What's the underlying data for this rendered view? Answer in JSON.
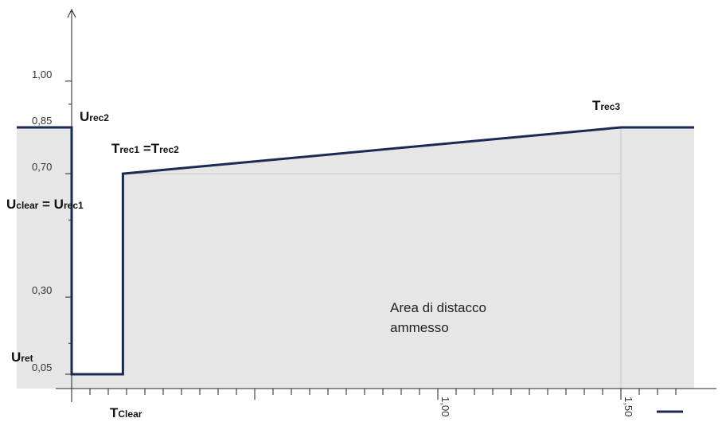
{
  "chart_data": {
    "type": "area",
    "title": "",
    "xlabel": "",
    "ylabel": "",
    "xlim": [
      -0.15,
      1.7
    ],
    "ylim": [
      0.0,
      1.2
    ],
    "y_ticks": [
      {
        "value": 0.05,
        "label": "0,05"
      },
      {
        "value": 0.3,
        "label": "0,30"
      },
      {
        "value": 0.7,
        "label": "0,70"
      },
      {
        "value": 0.85,
        "label": "0,85"
      },
      {
        "value": 1.0,
        "label": "1,00"
      }
    ],
    "x_ticks": [
      {
        "value": 1.0,
        "label": "1,00"
      },
      {
        "value": 1.5,
        "label": "1,50"
      }
    ],
    "x_minor_tick_step": 0.05,
    "series": [
      {
        "values_desc": "",
        "x": [
          -0.15,
          0.0,
          0.0,
          0.14,
          0.14,
          1.5,
          1.7
        ],
        "y": [
          0.85,
          0.85,
          0.05,
          0.05,
          0.7,
          0.85,
          0.85
        ],
        "color": "#1b2a55"
      }
    ],
    "fill_color": "#e6e6e6",
    "guide_lines": [
      {
        "y": 0.7,
        "x_from": 0.14,
        "x_to": 1.5
      },
      {
        "x": 1.5,
        "y_from": 0.0,
        "y_to": 0.85
      }
    ],
    "annotations": {
      "urec2": {
        "main": "U",
        "sub": "rec2"
      },
      "trec1_trec2": {
        "main1": "T",
        "sub1": "rec1",
        "eq": " =T",
        "sub2": "rec2"
      },
      "uclear_urec1": {
        "main1": "U",
        "sub1": "clear",
        "eq": " = U",
        "sub2": "rec1"
      },
      "uret": {
        "main": "U",
        "sub": "ret"
      },
      "tclear": {
        "main": "T",
        "sub": "Clear"
      },
      "trec3": {
        "main": "T",
        "sub": "rec3"
      },
      "area_line1": "Area di distacco",
      "area_line2": "ammesso"
    },
    "legend_entries": [
      {
        "label": "",
        "color": "#1b2a55"
      }
    ],
    "grid": false
  }
}
